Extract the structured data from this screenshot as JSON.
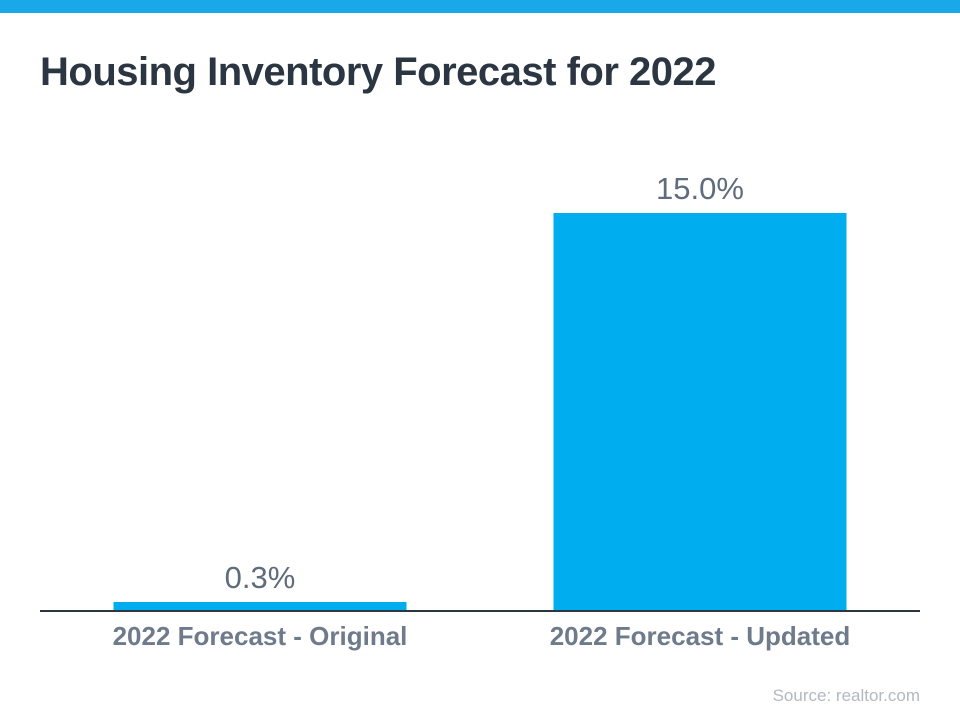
{
  "page": {
    "title": "Housing Inventory Forecast for 2022",
    "source": "Source: realtor.com"
  },
  "colors": {
    "accent_strip": "#1aa9e8",
    "bar": "#00aeef",
    "title_text": "#2b3642",
    "value_label": "#5f6c7b",
    "category_label": "#6e7b8b",
    "axis_line": "#2b3840",
    "source_text": "#b2b9c0"
  },
  "chart_data": {
    "type": "bar",
    "title": "Housing Inventory Forecast for 2022",
    "categories": [
      "2022 Forecast - Original",
      "2022 Forecast - Updated"
    ],
    "values": [
      0.3,
      15.0
    ],
    "value_labels": [
      "0.3%",
      "15.0%"
    ],
    "unit": "%",
    "xlabel": "",
    "ylabel": "",
    "ylim": [
      0,
      15
    ],
    "grid": false,
    "legend": false,
    "axis_ticks_visible": false,
    "source": "Source: realtor.com"
  }
}
